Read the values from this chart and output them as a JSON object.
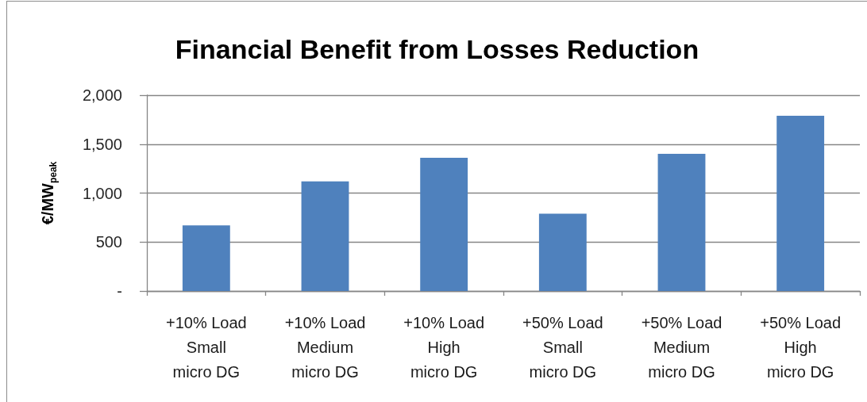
{
  "chart_data": {
    "type": "bar",
    "title": "Financial Benefit from Losses Reduction",
    "ylabel": "€/MW$_{peak}$",
    "categories": [
      "+10% Load\nSmall\nmicro DG",
      "+10% Load\nMedium\nmicro DG",
      "+10% Load\nHigh\nmicro DG",
      "+50% Load\nSmall\nmicro DG",
      "+50% Load\nMedium\nmicro DG",
      "+50% Load\nHigh\nmicro DG"
    ],
    "values": [
      670,
      1120,
      1360,
      790,
      1400,
      1790
    ],
    "color": "#4f81bd",
    "ylim": [
      0,
      2000
    ],
    "yticks": [
      {
        "value": 0,
        "label": "-"
      },
      500,
      {
        "value": 1000,
        "label": "1,000"
      },
      {
        "value": 1500,
        "label": "1,500"
      },
      {
        "value": 2000,
        "label": "2,000"
      }
    ],
    "grid": "y"
  }
}
